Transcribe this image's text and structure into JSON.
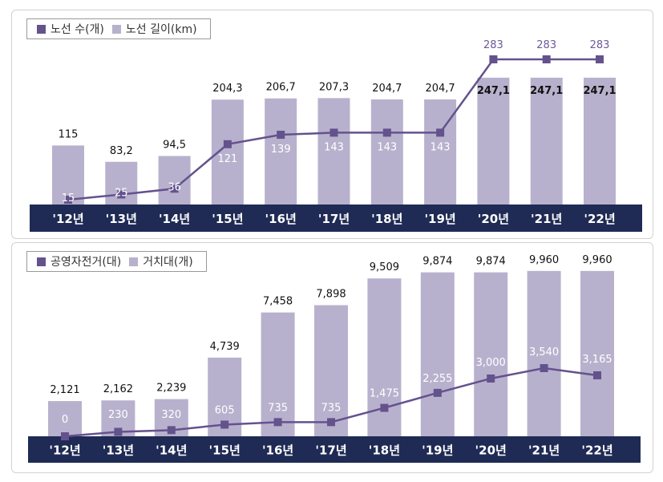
{
  "colors": {
    "bar": "#b8b1cd",
    "line": "#64528d",
    "axis_band": "#1f2b55",
    "axis_text": "#ffffff",
    "value_text": "#111111",
    "inner_label": "#ffffff",
    "top_line_label": "#6b5a98"
  },
  "chart_data": [
    {
      "type": "bar",
      "categories": [
        "'12년",
        "'13년",
        "'14년",
        "'15년",
        "'16년",
        "'17년",
        "'18년",
        "'19년",
        "'20년",
        "'21년",
        "'22년"
      ],
      "legend": [
        "노선 수(개)",
        "노선 길이(km)"
      ],
      "series": [
        {
          "name": "노선 길이(km)",
          "kind": "bar",
          "values": [
            115,
            83.2,
            94.5,
            204.3,
            206.7,
            207.3,
            204.7,
            204.7,
            247.1,
            247.1,
            247.1
          ],
          "labels": [
            "115",
            "83,2",
            "94,5",
            "204,3",
            "206,7",
            "207,3",
            "204,7",
            "204,7",
            "247,1",
            "247,1",
            "247,1"
          ]
        },
        {
          "name": "노선 수(개)",
          "kind": "line",
          "values": [
            15,
            25,
            36,
            121,
            139,
            143,
            143,
            143,
            283,
            283,
            283
          ],
          "labels": [
            "15",
            "25",
            "36",
            "121",
            "139",
            "143",
            "143",
            "143",
            "283",
            "283",
            "283"
          ]
        }
      ]
    },
    {
      "type": "bar",
      "categories": [
        "'12년",
        "'13년",
        "'14년",
        "'15년",
        "'16년",
        "'17년",
        "'18년",
        "'19년",
        "'20년",
        "'21년",
        "'22년"
      ],
      "legend": [
        "공영자전거(대)",
        "거치대(개)"
      ],
      "series": [
        {
          "name": "거치대(개)",
          "kind": "bar",
          "values": [
            2121,
            2162,
            2239,
            4739,
            7458,
            7898,
            9509,
            9874,
            9874,
            9960,
            9960
          ],
          "labels": [
            "2,121",
            "2,162",
            "2,239",
            "4,739",
            "7,458",
            "7,898",
            "9,509",
            "9,874",
            "9,874",
            "9,960",
            "9,960"
          ]
        },
        {
          "name": "공영자전거(대)",
          "kind": "line",
          "values": [
            0,
            230,
            320,
            605,
            735,
            735,
            1475,
            2255,
            3000,
            3540,
            3165
          ],
          "labels": [
            "0",
            "230",
            "320",
            "605",
            "735",
            "735",
            "1,475",
            "2,255",
            "3,000",
            "3,540",
            "3,165"
          ]
        }
      ]
    }
  ]
}
